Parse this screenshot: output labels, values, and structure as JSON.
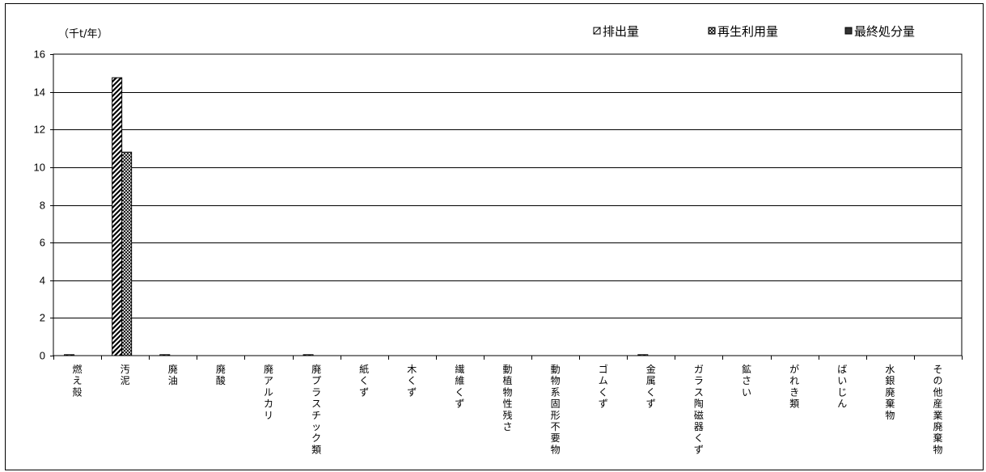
{
  "chart_data": {
    "type": "bar",
    "unit_label": "（千t/年）",
    "ylim": [
      0,
      16
    ],
    "yticks": [
      0,
      2,
      4,
      6,
      8,
      10,
      12,
      14,
      16
    ],
    "grid": true,
    "legend_position": "top-right",
    "categories": [
      "燃え殻",
      "汚泥",
      "廃油",
      "廃酸",
      "廃アルカリ",
      "廃プラスチック類",
      "紙くず",
      "木くず",
      "繊維くず",
      "動植物性残さ",
      "動物系固形不要物",
      "ゴムくず",
      "金属くず",
      "ガラス陶磁器くず",
      "鉱さい",
      "がれき類",
      "ばいじん",
      "水銀廃棄物",
      "その他産業廃棄物"
    ],
    "series": [
      {
        "name": "排出量",
        "pattern": "diagonal",
        "values": [
          0.05,
          14.75,
          0.05,
          0,
          0,
          0.05,
          0,
          0,
          0,
          0,
          0,
          0,
          0.05,
          0,
          0,
          0,
          0,
          0,
          0
        ]
      },
      {
        "name": "再生利用量",
        "pattern": "crosshatch",
        "values": [
          0,
          10.8,
          0,
          0,
          0,
          0,
          0,
          0,
          0,
          0,
          0,
          0,
          0,
          0,
          0,
          0,
          0,
          0,
          0
        ]
      },
      {
        "name": "最終処分量",
        "pattern": "solid",
        "values": [
          0,
          0,
          0,
          0,
          0,
          0,
          0,
          0,
          0,
          0,
          0,
          0,
          0,
          0,
          0,
          0,
          0,
          0,
          0
        ]
      }
    ],
    "colors": {
      "axis": "#000000",
      "grid": "#000000",
      "solid": "#333333"
    }
  }
}
